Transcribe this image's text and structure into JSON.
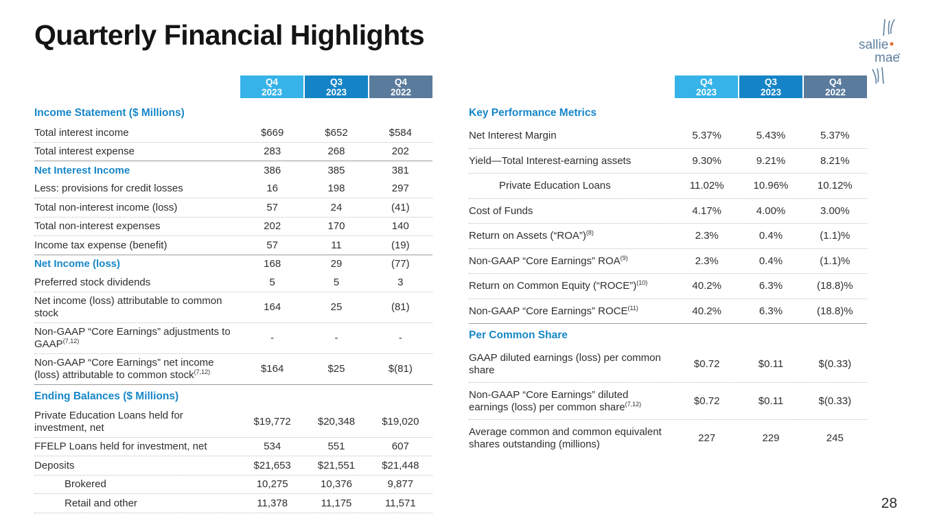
{
  "page": {
    "title": "Quarterly Financial Highlights",
    "page_number": "28"
  },
  "logo": {
    "name": "sallie mae",
    "line1": "sallie",
    "line2": "mae",
    "text_color": "#5E7F9E",
    "dot_color": "#E8703A"
  },
  "colors": {
    "accent_blue": "#1787C9",
    "header_q4_2023": "#36B3E8",
    "header_q3_2023": "#1484C6",
    "header_q4_2022": "#5A7B9C",
    "text": "#2E2E2E"
  },
  "columns": [
    {
      "quarter": "Q4",
      "year": "2023",
      "color": "#36B3E8"
    },
    {
      "quarter": "Q3",
      "year": "2023",
      "color": "#1484C6"
    },
    {
      "quarter": "Q4",
      "year": "2022",
      "color": "#5A7B9C"
    }
  ],
  "left_table": {
    "rows": [
      {
        "type": "section",
        "label": "Income Statement ($ Millions)"
      },
      {
        "label": "Total interest income",
        "values": [
          "$669",
          "$652",
          "$584"
        ],
        "bb": "dotted"
      },
      {
        "label": "Total interest expense",
        "values": [
          "283",
          "268",
          "202"
        ],
        "bb": "solid"
      },
      {
        "label": "Net Interest Income",
        "blue": true,
        "values": [
          "386",
          "385",
          "381"
        ],
        "bb": "none"
      },
      {
        "label": "Less: provisions for credit losses",
        "values": [
          "16",
          "198",
          "297"
        ],
        "bb": "dotted"
      },
      {
        "label": "Total non-interest income (loss)",
        "values": [
          "57",
          "24",
          "(41)"
        ],
        "bb": "dotted"
      },
      {
        "label": "Total non-interest expenses",
        "values": [
          "202",
          "170",
          "140"
        ],
        "bb": "dotted"
      },
      {
        "label": "Income tax expense (benefit)",
        "values": [
          "57",
          "11",
          "(19)"
        ],
        "bb": "solid"
      },
      {
        "label": "Net Income (loss)",
        "blue": true,
        "values": [
          "168",
          "29",
          "(77)"
        ],
        "bb": "none"
      },
      {
        "label": "Preferred stock dividends",
        "values": [
          "5",
          "5",
          "3"
        ],
        "bb": "dotted"
      },
      {
        "label": "Net income (loss) attributable to common stock",
        "values": [
          "164",
          "25",
          "(81)"
        ],
        "bb": "dotted"
      },
      {
        "label": "Non-GAAP “Core Earnings” adjustments to GAAP",
        "sup": "(7,12)",
        "values": [
          "-",
          "-",
          "-"
        ],
        "bb": "dotted"
      },
      {
        "label": "Non-GAAP “Core Earnings” net income (loss) attributable to common stock",
        "sup": "(7,12)",
        "values": [
          "$164",
          "$25",
          "$(81)"
        ],
        "bb": "solid"
      },
      {
        "type": "section",
        "label": "Ending Balances ($ Millions)"
      },
      {
        "label": "Private Education Loans held for investment, net",
        "values": [
          "$19,772",
          "$20,348",
          "$19,020"
        ],
        "bb": "dotted"
      },
      {
        "label": "FFELP Loans held for investment, net",
        "values": [
          "534",
          "551",
          "607"
        ],
        "bb": "dotted"
      },
      {
        "label": "Deposits",
        "values": [
          "$21,653",
          "$21,551",
          "$21,448"
        ],
        "bb": "dotted"
      },
      {
        "label": "Brokered",
        "indent": true,
        "values": [
          "10,275",
          "10,376",
          "9,877"
        ],
        "bb": "dotted"
      },
      {
        "label": "Retail and other",
        "indent": true,
        "values": [
          "11,378",
          "11,175",
          "11,571"
        ],
        "bb": "dotted"
      }
    ]
  },
  "right_table": {
    "rows": [
      {
        "type": "section",
        "label": "Key Performance Metrics"
      },
      {
        "label": "Net Interest Margin",
        "values": [
          "5.37%",
          "5.43%",
          "5.37%"
        ],
        "bb": "dotted"
      },
      {
        "label": "Yield—Total Interest-earning assets",
        "values": [
          "9.30%",
          "9.21%",
          "8.21%"
        ],
        "bb": "dotted"
      },
      {
        "label": "Private Education Loans",
        "indent": true,
        "values": [
          "11.02%",
          "10.96%",
          "10.12%"
        ],
        "bb": "dotted"
      },
      {
        "label": "Cost of Funds",
        "values": [
          "4.17%",
          "4.00%",
          "3.00%"
        ],
        "bb": "dotted"
      },
      {
        "label": "Return on Assets (“ROA”)",
        "sup": "(8)",
        "values": [
          "2.3%",
          "0.4%",
          "(1.1)%"
        ],
        "bb": "dotted"
      },
      {
        "label": "Non-GAAP “Core Earnings” ROA",
        "sup": "(9)",
        "values": [
          "2.3%",
          "0.4%",
          "(1.1)%"
        ],
        "bb": "dotted"
      },
      {
        "label": "Return on Common Equity (“ROCE”)",
        "sup": "(10)",
        "values": [
          "40.2%",
          "6.3%",
          "(18.8)%"
        ],
        "bb": "dotted"
      },
      {
        "label": "Non-GAAP “Core Earnings” ROCE",
        "sup": "(11)",
        "values": [
          "40.2%",
          "6.3%",
          "(18.8)%"
        ],
        "bb": "solid"
      },
      {
        "type": "section",
        "label": "Per Common Share"
      },
      {
        "label": "GAAP diluted earnings (loss) per common share",
        "values": [
          "$0.72",
          "$0.11",
          "$(0.33)"
        ],
        "bb": "dotted"
      },
      {
        "label": "Non-GAAP “Core Earnings” diluted earnings (loss) per common share",
        "sup": "(7,12)",
        "values": [
          "$0.72",
          "$0.11",
          "$(0.33)"
        ],
        "bb": "dotted"
      },
      {
        "label": "Average common and common equivalent shares outstanding (millions)",
        "values": [
          "227",
          "229",
          "245"
        ],
        "bb": "none"
      }
    ]
  }
}
